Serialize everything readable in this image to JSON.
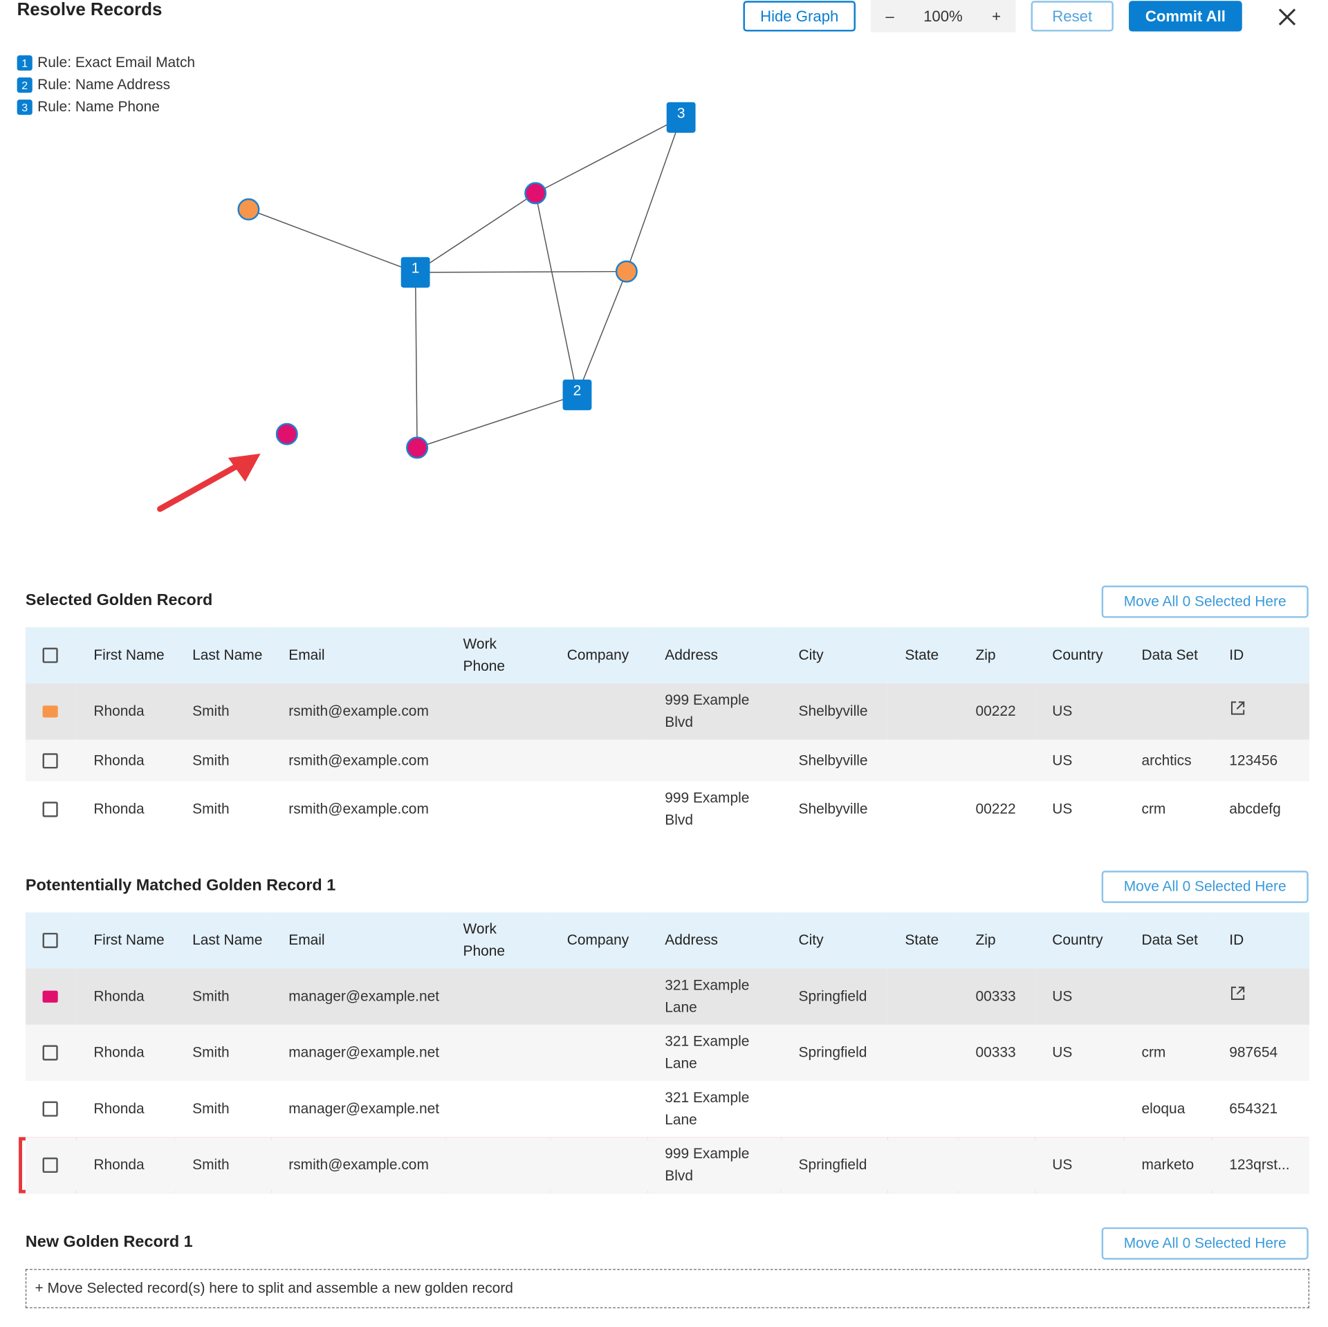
{
  "header": {
    "title": "Resolve Records",
    "buttons": [
      "Hide Graph",
      "Reset",
      "Commit All"
    ],
    "zoom": "100%"
  },
  "legend": [
    {
      "number": "1",
      "label": "Rule: Exact Email Match"
    },
    {
      "number": "2",
      "label": "Rule: Name Address"
    },
    {
      "number": "3",
      "label": "Rule: Name Phone"
    }
  ],
  "graph": {
    "rule_nodes": [
      "1",
      "2",
      "3"
    ]
  },
  "sections": [
    {
      "title": "Selected Golden Record",
      "action": "Move All 0 Selected Here",
      "columns": [
        "First Name",
        "Last Name",
        "Email",
        "Work Phone",
        "Company",
        "Address",
        "City",
        "State",
        "Zip",
        "Country",
        "Data Set",
        "ID"
      ],
      "rows": [
        [
          "Rhonda",
          "Smith",
          "rsmith@example.com",
          null,
          null,
          "999 Example Blvd",
          "Shelbyville",
          null,
          "00222",
          "US",
          null,
          null
        ],
        [
          "Rhonda",
          "Smith",
          "rsmith@example.com",
          null,
          null,
          null,
          "Shelbyville",
          null,
          null,
          "US",
          "archtics",
          "123456"
        ],
        [
          "Rhonda",
          "Smith",
          "rsmith@example.com",
          null,
          null,
          "999 Example Blvd",
          "Shelbyville",
          null,
          "00222",
          "US",
          "crm",
          "abcdefg"
        ]
      ]
    },
    {
      "title": "Potententially Matched Golden Record 1",
      "action": "Move All 0 Selected Here",
      "columns": [
        "First Name",
        "Last Name",
        "Email",
        "Work Phone",
        "Company",
        "Address",
        "City",
        "State",
        "Zip",
        "Country",
        "Data Set",
        "ID"
      ],
      "rows": [
        [
          "Rhonda",
          "Smith",
          "manager@example.net",
          null,
          null,
          "321 Example Lane",
          "Springfield",
          null,
          "00333",
          "US",
          null,
          null
        ],
        [
          "Rhonda",
          "Smith",
          "manager@example.net",
          null,
          null,
          "321 Example Lane",
          "Springfield",
          null,
          "00333",
          "US",
          "crm",
          "987654"
        ],
        [
          "Rhonda",
          "Smith",
          "manager@example.net",
          null,
          null,
          "321 Example Lane",
          null,
          null,
          null,
          null,
          "eloqua",
          "654321"
        ],
        [
          "Rhonda",
          "Smith",
          "rsmith@example.com",
          null,
          null,
          "999 Example Blvd",
          "Springfield",
          null,
          null,
          "US",
          "marketo",
          "123qrst..."
        ]
      ]
    }
  ],
  "new_record": {
    "title": "New Golden Record 1",
    "action": "Move All 0 Selected Here",
    "placeholder": "+ Move Selected record(s) here to split and assemble a new golden record"
  }
}
